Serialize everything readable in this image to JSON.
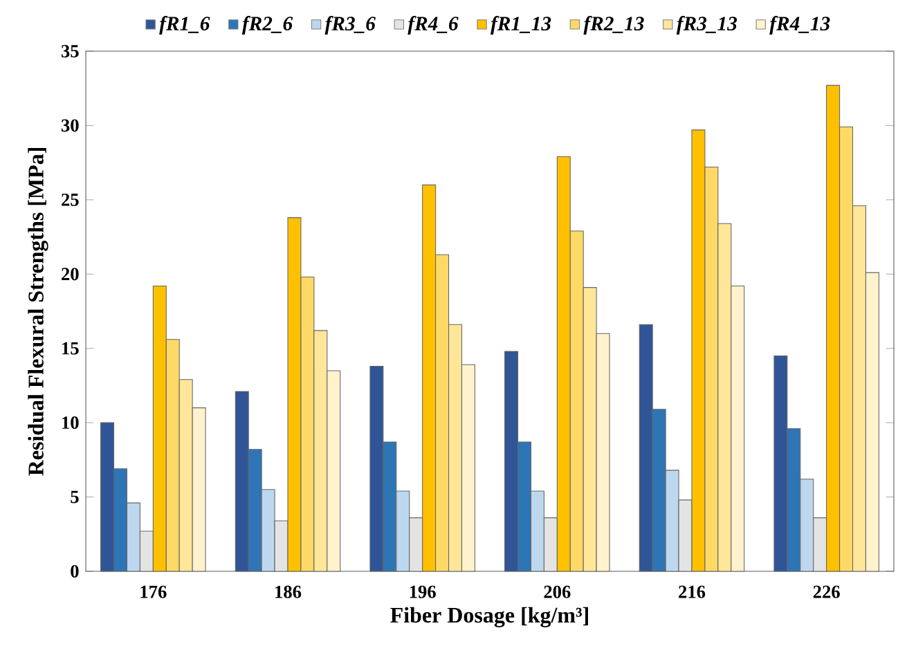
{
  "chart_data": {
    "type": "bar",
    "xlabel": "Fiber Dosage [kg/m³]",
    "ylabel": "Residual Flexural Strengths [MPa]",
    "categories": [
      "176",
      "186",
      "196",
      "206",
      "216",
      "226"
    ],
    "series": [
      {
        "name": "fR1_6",
        "color": "#2f5597",
        "values": [
          10.0,
          12.1,
          13.8,
          14.8,
          16.6,
          14.5
        ]
      },
      {
        "name": "fR2_6",
        "color": "#2e75b6",
        "values": [
          6.9,
          8.2,
          8.7,
          8.7,
          10.9,
          9.6
        ]
      },
      {
        "name": "fR3_6",
        "color": "#bdd7ee",
        "values": [
          4.6,
          5.5,
          5.4,
          5.4,
          6.8,
          6.2
        ]
      },
      {
        "name": "fR4_6",
        "color": "#e4e4e4",
        "values": [
          2.7,
          3.4,
          3.6,
          3.6,
          4.8,
          3.6
        ]
      },
      {
        "name": "fR1_13",
        "color": "#ffc000",
        "values": [
          19.2,
          23.8,
          26.0,
          27.9,
          29.7,
          32.7
        ]
      },
      {
        "name": "fR2_13",
        "color": "#ffd966",
        "values": [
          15.6,
          19.8,
          21.3,
          22.9,
          27.2,
          29.9
        ]
      },
      {
        "name": "fR3_13",
        "color": "#ffe699",
        "values": [
          12.9,
          16.2,
          16.6,
          19.1,
          23.4,
          24.6
        ]
      },
      {
        "name": "fR4_13",
        "color": "#fff2cc",
        "values": [
          11.0,
          13.5,
          13.9,
          16.0,
          19.2,
          20.1
        ]
      }
    ],
    "ylim": [
      0,
      35
    ],
    "yticks": [
      0,
      5,
      10,
      15,
      20,
      25,
      30,
      35
    ],
    "grid": false,
    "legend": "top"
  }
}
